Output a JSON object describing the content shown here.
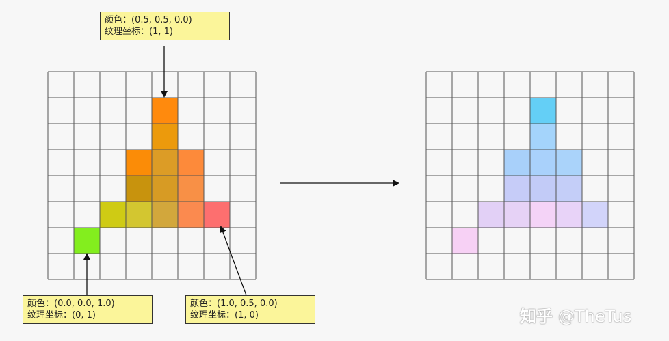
{
  "grid": {
    "rows": 8,
    "cols": 8
  },
  "left_cells": [
    {
      "row": 1,
      "col": 4,
      "color": "#ff8a0d"
    },
    {
      "row": 2,
      "col": 4,
      "color": "#ec9a0c"
    },
    {
      "row": 3,
      "col": 3,
      "color": "#fb8c07"
    },
    {
      "row": 3,
      "col": 4,
      "color": "#dc9c26"
    },
    {
      "row": 3,
      "col": 5,
      "color": "#fd8a3a"
    },
    {
      "row": 4,
      "col": 3,
      "color": "#c8930d"
    },
    {
      "row": 4,
      "col": 4,
      "color": "#d79b24"
    },
    {
      "row": 4,
      "col": 5,
      "color": "#f89046"
    },
    {
      "row": 5,
      "col": 2,
      "color": "#cfcb14"
    },
    {
      "row": 5,
      "col": 3,
      "color": "#d3c630"
    },
    {
      "row": 5,
      "col": 4,
      "color": "#d2a73c"
    },
    {
      "row": 5,
      "col": 5,
      "color": "#fb8a4f"
    },
    {
      "row": 5,
      "col": 6,
      "color": "#fd6f6f"
    },
    {
      "row": 6,
      "col": 1,
      "color": "#83ee1e"
    }
  ],
  "right_cells": [
    {
      "row": 1,
      "col": 4,
      "color": "#64cff6"
    },
    {
      "row": 2,
      "col": 4,
      "color": "#a4d4fb"
    },
    {
      "row": 3,
      "col": 3,
      "color": "#a8d0fa"
    },
    {
      "row": 3,
      "col": 4,
      "color": "#a9d1fb"
    },
    {
      "row": 3,
      "col": 5,
      "color": "#aad3fa"
    },
    {
      "row": 4,
      "col": 3,
      "color": "#c6ccf8"
    },
    {
      "row": 4,
      "col": 4,
      "color": "#c2cbf7"
    },
    {
      "row": 4,
      "col": 5,
      "color": "#c4cef8"
    },
    {
      "row": 5,
      "col": 2,
      "color": "#e2d0f6"
    },
    {
      "row": 5,
      "col": 3,
      "color": "#e6d2f6"
    },
    {
      "row": 5,
      "col": 4,
      "color": "#f4d3f7"
    },
    {
      "row": 5,
      "col": 5,
      "color": "#e8d3f8"
    },
    {
      "row": 5,
      "col": 6,
      "color": "#d2d4fa"
    },
    {
      "row": 6,
      "col": 1,
      "color": "#f7d1f5"
    }
  ],
  "callouts": {
    "top": {
      "color_line": "颜色：(0.5, 0.5, 0.0)",
      "tex_line": "纹理坐标：(1, 1)"
    },
    "bottom_left": {
      "color_line": "颜色：(0.0, 0.0, 1.0)",
      "tex_line": "纹理坐标：(0, 1)"
    },
    "bottom_right": {
      "color_line": "颜色：(1.0, 0.5, 0.0)",
      "tex_line": "纹理坐标：(1, 0)"
    }
  },
  "watermark": {
    "logo": "知乎",
    "handle": "@TheTus"
  },
  "colors": {
    "grid_line": "#555555",
    "arrow": "#111111",
    "callout_bg": "#fbf59a"
  }
}
